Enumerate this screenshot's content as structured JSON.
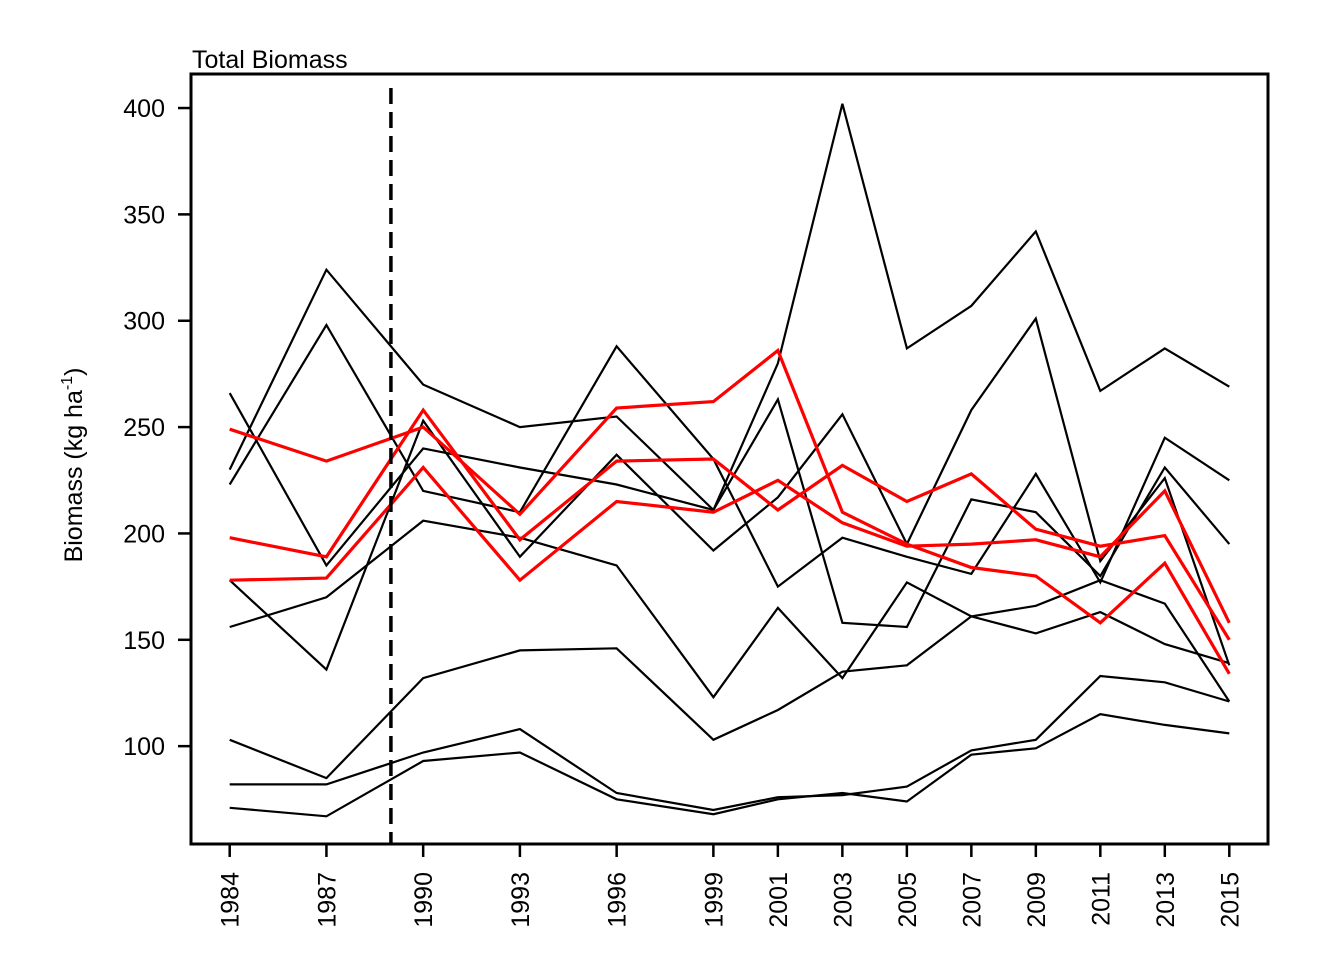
{
  "chart_data": {
    "type": "line",
    "title": "Total Biomass",
    "ylabel": {
      "main": "Biomass (kg ha",
      "superscript": "-1",
      "close": ")"
    },
    "xlabel": "",
    "x": [
      "1984",
      "1987",
      "1990",
      "1993",
      "1996",
      "1999",
      "2001",
      "2003",
      "2005",
      "2007",
      "2009",
      "2011",
      "2013",
      "2015"
    ],
    "x_numeric": [
      1984,
      1987,
      1990,
      1993,
      1996,
      1999,
      2001,
      2003,
      2005,
      2007,
      2009,
      2011,
      2013,
      2015
    ],
    "xlim": [
      1982.8,
      2016.2
    ],
    "ylim": [
      54,
      416
    ],
    "yticks": [
      100,
      150,
      200,
      250,
      300,
      350,
      400
    ],
    "reference_line": {
      "x": 1989,
      "style": "dashed",
      "color": "#000000"
    },
    "grid": false,
    "legend": "none",
    "colors": {
      "black_series": "#000000",
      "red_series": "#ff0000"
    },
    "series": [
      {
        "color": "#000000",
        "values": [
          230,
          324,
          270,
          250,
          255,
          211,
          280,
          402,
          287,
          307,
          342,
          267,
          287,
          269
        ]
      },
      {
        "color": "#000000",
        "values": [
          223,
          298,
          220,
          210,
          288,
          235,
          175,
          198,
          189,
          181,
          228,
          177,
          245,
          225
        ]
      },
      {
        "color": "#000000",
        "values": [
          266,
          185,
          240,
          231,
          223,
          211,
          263,
          158,
          156,
          216,
          210,
          180,
          231,
          195
        ]
      },
      {
        "color": "#000000",
        "values": [
          178,
          136,
          253,
          189,
          237,
          192,
          217,
          256,
          195,
          258,
          301,
          187,
          226,
          138
        ]
      },
      {
        "color": "#000000",
        "values": [
          156,
          170,
          206,
          198,
          185,
          123,
          165,
          132,
          177,
          161,
          153,
          163,
          148,
          139
        ]
      },
      {
        "color": "#000000",
        "values": [
          103,
          85,
          132,
          145,
          146,
          103,
          117,
          135,
          138,
          161,
          166,
          178,
          167,
          121
        ]
      },
      {
        "color": "#000000",
        "values": [
          82,
          82,
          97,
          108,
          78,
          70,
          76,
          77,
          81,
          98,
          103,
          133,
          130,
          121
        ]
      },
      {
        "color": "#000000",
        "values": [
          71,
          67,
          93,
          97,
          75,
          68,
          75,
          78,
          74,
          96,
          99,
          115,
          110,
          106
        ]
      },
      {
        "color": "#ff0000",
        "values": [
          249,
          234,
          250,
          209,
          259,
          262,
          286,
          210,
          195,
          184,
          180,
          158,
          186,
          134
        ]
      },
      {
        "color": "#ff0000",
        "values": [
          198,
          189,
          258,
          197,
          234,
          235,
          211,
          232,
          215,
          228,
          202,
          194,
          199,
          150
        ]
      },
      {
        "color": "#ff0000",
        "values": [
          178,
          179,
          231,
          178,
          215,
          210,
          225,
          205,
          194,
          195,
          197,
          189,
          220,
          158
        ]
      }
    ]
  }
}
